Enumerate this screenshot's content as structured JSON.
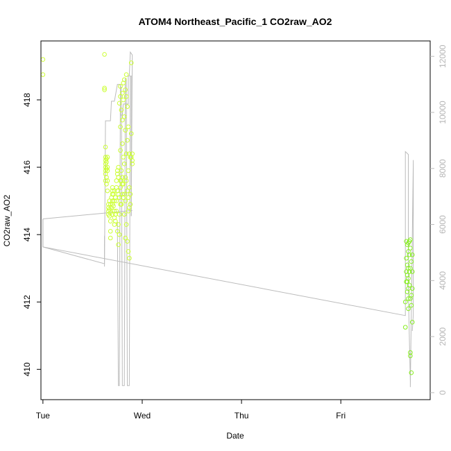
{
  "chart_data": {
    "type": "scatter",
    "title": "ATOM4 Northeast_Pacific_1 CO2raw_AO2",
    "xlabel": "Date",
    "ylabel": "CO2raw_AO2",
    "x_tick_labels": [
      "Tue",
      "Wed",
      "Thu",
      "Fri"
    ],
    "x_ticks": [
      0,
      1,
      2,
      3
    ],
    "xlim": [
      -0.02,
      3.9
    ],
    "ylim": [
      409.1,
      419.75
    ],
    "y_ticks": [
      410,
      412,
      414,
      416,
      418
    ],
    "y_tick_labels": [
      "410",
      "412",
      "414",
      "416",
      "418"
    ],
    "y2_ticks": [
      0,
      2000,
      4000,
      6000,
      8000,
      10000,
      12000
    ],
    "y2_tick_labels": [
      "0",
      "2000",
      "4000",
      "6000",
      "8000",
      "10000",
      "12000"
    ],
    "y2lim": [
      -250,
      12550
    ],
    "grid": false,
    "colors": {
      "points_early": "#ccff33",
      "points_late": "#88ee22",
      "line": "#bbbbbb",
      "axes": "#000000",
      "right_axis": "#bbbbbb"
    },
    "series": [
      {
        "kind": "points",
        "points": [
          [
            0.0,
            419.2
          ],
          [
            0.0,
            418.75
          ],
          [
            0.62,
            419.35
          ],
          [
            0.62,
            418.35
          ],
          [
            0.62,
            418.3
          ],
          [
            0.63,
            416.6
          ],
          [
            0.63,
            416.3
          ],
          [
            0.63,
            416.2
          ],
          [
            0.63,
            416.1
          ],
          [
            0.63,
            416.0
          ],
          [
            0.63,
            415.9
          ],
          [
            0.63,
            415.8
          ],
          [
            0.63,
            415.6
          ],
          [
            0.64,
            416.25
          ],
          [
            0.64,
            416.15
          ],
          [
            0.64,
            415.95
          ],
          [
            0.64,
            415.7
          ],
          [
            0.64,
            415.5
          ],
          [
            0.65,
            416.3
          ],
          [
            0.65,
            416.0
          ],
          [
            0.65,
            415.9
          ],
          [
            0.65,
            415.6
          ],
          [
            0.65,
            415.3
          ],
          [
            0.66,
            414.9
          ],
          [
            0.66,
            414.8
          ],
          [
            0.66,
            414.7
          ],
          [
            0.66,
            414.6
          ],
          [
            0.67,
            415.0
          ],
          [
            0.67,
            414.75
          ],
          [
            0.67,
            414.55
          ],
          [
            0.68,
            414.9
          ],
          [
            0.68,
            414.65
          ],
          [
            0.68,
            414.4
          ],
          [
            0.68,
            414.1
          ],
          [
            0.68,
            413.9
          ],
          [
            0.69,
            415.1
          ],
          [
            0.69,
            414.8
          ],
          [
            0.7,
            415.4
          ],
          [
            0.7,
            415.3
          ],
          [
            0.7,
            415.2
          ],
          [
            0.7,
            415.0
          ],
          [
            0.7,
            414.9
          ],
          [
            0.7,
            414.6
          ],
          [
            0.71,
            415.2
          ],
          [
            0.71,
            414.85
          ],
          [
            0.72,
            415.3
          ],
          [
            0.72,
            415.0
          ],
          [
            0.72,
            414.7
          ],
          [
            0.72,
            414.5
          ],
          [
            0.72,
            414.3
          ],
          [
            0.73,
            415.1
          ],
          [
            0.73,
            414.6
          ],
          [
            0.73,
            414.4
          ],
          [
            0.74,
            415.6
          ],
          [
            0.74,
            415.4
          ],
          [
            0.74,
            415.0
          ],
          [
            0.74,
            414.7
          ],
          [
            0.75,
            415.9
          ],
          [
            0.75,
            415.8
          ],
          [
            0.75,
            415.3
          ],
          [
            0.75,
            414.1
          ],
          [
            0.76,
            416.0
          ],
          [
            0.76,
            415.7
          ],
          [
            0.76,
            415.2
          ],
          [
            0.76,
            414.3
          ],
          [
            0.76,
            413.7
          ],
          [
            0.77,
            417.9
          ],
          [
            0.77,
            415.1
          ],
          [
            0.77,
            414.6
          ],
          [
            0.77,
            414.0
          ],
          [
            0.78,
            418.4
          ],
          [
            0.78,
            418.1
          ],
          [
            0.78,
            417.2
          ],
          [
            0.78,
            416.5
          ],
          [
            0.78,
            415.6
          ],
          [
            0.78,
            415.4
          ],
          [
            0.78,
            414.9
          ],
          [
            0.79,
            417.7
          ],
          [
            0.79,
            415.9
          ],
          [
            0.79,
            415.6
          ],
          [
            0.79,
            414.9
          ],
          [
            0.8,
            418.2
          ],
          [
            0.8,
            417.4
          ],
          [
            0.8,
            416.7
          ],
          [
            0.8,
            415.7
          ],
          [
            0.8,
            415.5
          ],
          [
            0.8,
            415.2
          ],
          [
            0.81,
            418.5
          ],
          [
            0.81,
            418.0
          ],
          [
            0.81,
            416.3
          ],
          [
            0.81,
            415.5
          ],
          [
            0.81,
            415.1
          ],
          [
            0.82,
            418.6
          ],
          [
            0.82,
            417.5
          ],
          [
            0.82,
            416.1
          ],
          [
            0.82,
            415.2
          ],
          [
            0.82,
            414.6
          ],
          [
            0.83,
            418.3
          ],
          [
            0.83,
            417.1
          ],
          [
            0.83,
            415.7
          ],
          [
            0.83,
            415.0
          ],
          [
            0.83,
            413.9
          ],
          [
            0.84,
            418.75
          ],
          [
            0.84,
            418.1
          ],
          [
            0.84,
            416.4
          ],
          [
            0.84,
            415.6
          ],
          [
            0.84,
            414.3
          ],
          [
            0.85,
            417.8
          ],
          [
            0.85,
            416.8
          ],
          [
            0.85,
            415.3
          ],
          [
            0.85,
            413.8
          ],
          [
            0.86,
            417.2
          ],
          [
            0.86,
            415.9
          ],
          [
            0.86,
            415.1
          ],
          [
            0.86,
            414.7
          ],
          [
            0.86,
            413.5
          ],
          [
            0.87,
            416.4
          ],
          [
            0.87,
            415.4
          ],
          [
            0.87,
            414.8
          ],
          [
            0.87,
            413.3
          ],
          [
            0.88,
            416.3
          ],
          [
            0.88,
            415.2
          ],
          [
            0.88,
            414.9
          ],
          [
            0.89,
            419.1
          ],
          [
            0.89,
            417.0
          ],
          [
            0.89,
            416.3
          ],
          [
            0.9,
            416.4
          ],
          [
            0.9,
            416.2
          ],
          [
            0.9,
            416.1
          ],
          [
            3.65,
            411.25
          ],
          [
            3.65,
            412.0
          ],
          [
            3.66,
            412.6
          ],
          [
            3.66,
            412.9
          ],
          [
            3.66,
            413.3
          ],
          [
            3.66,
            413.8
          ],
          [
            3.67,
            412.3
          ],
          [
            3.67,
            412.6
          ],
          [
            3.67,
            412.8
          ],
          [
            3.67,
            413.1
          ],
          [
            3.67,
            413.7
          ],
          [
            3.68,
            411.8
          ],
          [
            3.68,
            412.1
          ],
          [
            3.68,
            412.4
          ],
          [
            3.68,
            412.7
          ],
          [
            3.68,
            413.0
          ],
          [
            3.68,
            413.5
          ],
          [
            3.68,
            413.75
          ],
          [
            3.69,
            412.5
          ],
          [
            3.69,
            412.9
          ],
          [
            3.69,
            413.4
          ],
          [
            3.69,
            413.8
          ],
          [
            3.7,
            410.4
          ],
          [
            3.7,
            410.5
          ],
          [
            3.7,
            412.1
          ],
          [
            3.7,
            413.0
          ],
          [
            3.7,
            413.6
          ],
          [
            3.7,
            413.85
          ],
          [
            3.71,
            409.9
          ],
          [
            3.71,
            411.9
          ],
          [
            3.71,
            412.2
          ],
          [
            3.71,
            413.2
          ],
          [
            3.72,
            411.4
          ],
          [
            3.72,
            412.4
          ],
          [
            3.72,
            412.9
          ],
          [
            3.72,
            413.4
          ]
        ]
      },
      {
        "kind": "line",
        "axis": "right",
        "points": [
          [
            0.0,
            6200
          ],
          [
            0.0,
            5200
          ],
          [
            3.65,
            2750
          ],
          [
            3.65,
            8600
          ],
          [
            3.68,
            8500
          ],
          [
            3.68,
            3600
          ],
          [
            3.7,
            400
          ],
          [
            3.7,
            200
          ],
          [
            3.73,
            8300
          ],
          [
            3.73,
            2800
          ],
          [
            3.72,
            2200
          ]
        ]
      },
      {
        "kind": "line",
        "axis": "right",
        "points": [
          [
            0.0,
            6200
          ],
          [
            0.0,
            5200
          ],
          [
            0.62,
            4600
          ],
          [
            0.62,
            5100
          ],
          [
            0.62,
            5600
          ]
        ]
      },
      {
        "kind": "line",
        "axis": "right",
        "points": [
          [
            0.62,
            4500
          ],
          [
            0.63,
            9700
          ],
          [
            0.68,
            9700
          ],
          [
            0.69,
            10400
          ],
          [
            0.72,
            10400
          ],
          [
            0.75,
            11000
          ],
          [
            0.78,
            11000
          ],
          [
            0.78,
            9900
          ],
          [
            0.8,
            9900
          ],
          [
            0.81,
            10300
          ],
          [
            0.82,
            10300
          ],
          [
            0.86,
            10300
          ],
          [
            0.86,
            11300
          ],
          [
            0.87,
            11300
          ],
          [
            0.88,
            12150
          ],
          [
            0.9,
            12050
          ],
          [
            0.89,
            6500
          ],
          [
            0.89,
            6300
          ]
        ]
      },
      {
        "kind": "line",
        "axis": "right",
        "points": [
          [
            0.75,
            6100
          ],
          [
            0.76,
            250
          ],
          [
            0.77,
            250
          ],
          [
            0.78,
            10900
          ],
          [
            0.79,
            10900
          ],
          [
            0.8,
            250
          ],
          [
            0.82,
            250
          ],
          [
            0.83,
            11200
          ],
          [
            0.84,
            11200
          ],
          [
            0.85,
            250
          ],
          [
            0.87,
            250
          ],
          [
            0.88,
            11300
          ],
          [
            0.89,
            11300
          ],
          [
            0.89,
            6300
          ]
        ]
      },
      {
        "kind": "line",
        "axis": "right",
        "points": [
          [
            0.0,
            6200
          ],
          [
            0.9,
            6500
          ]
        ]
      }
    ]
  }
}
